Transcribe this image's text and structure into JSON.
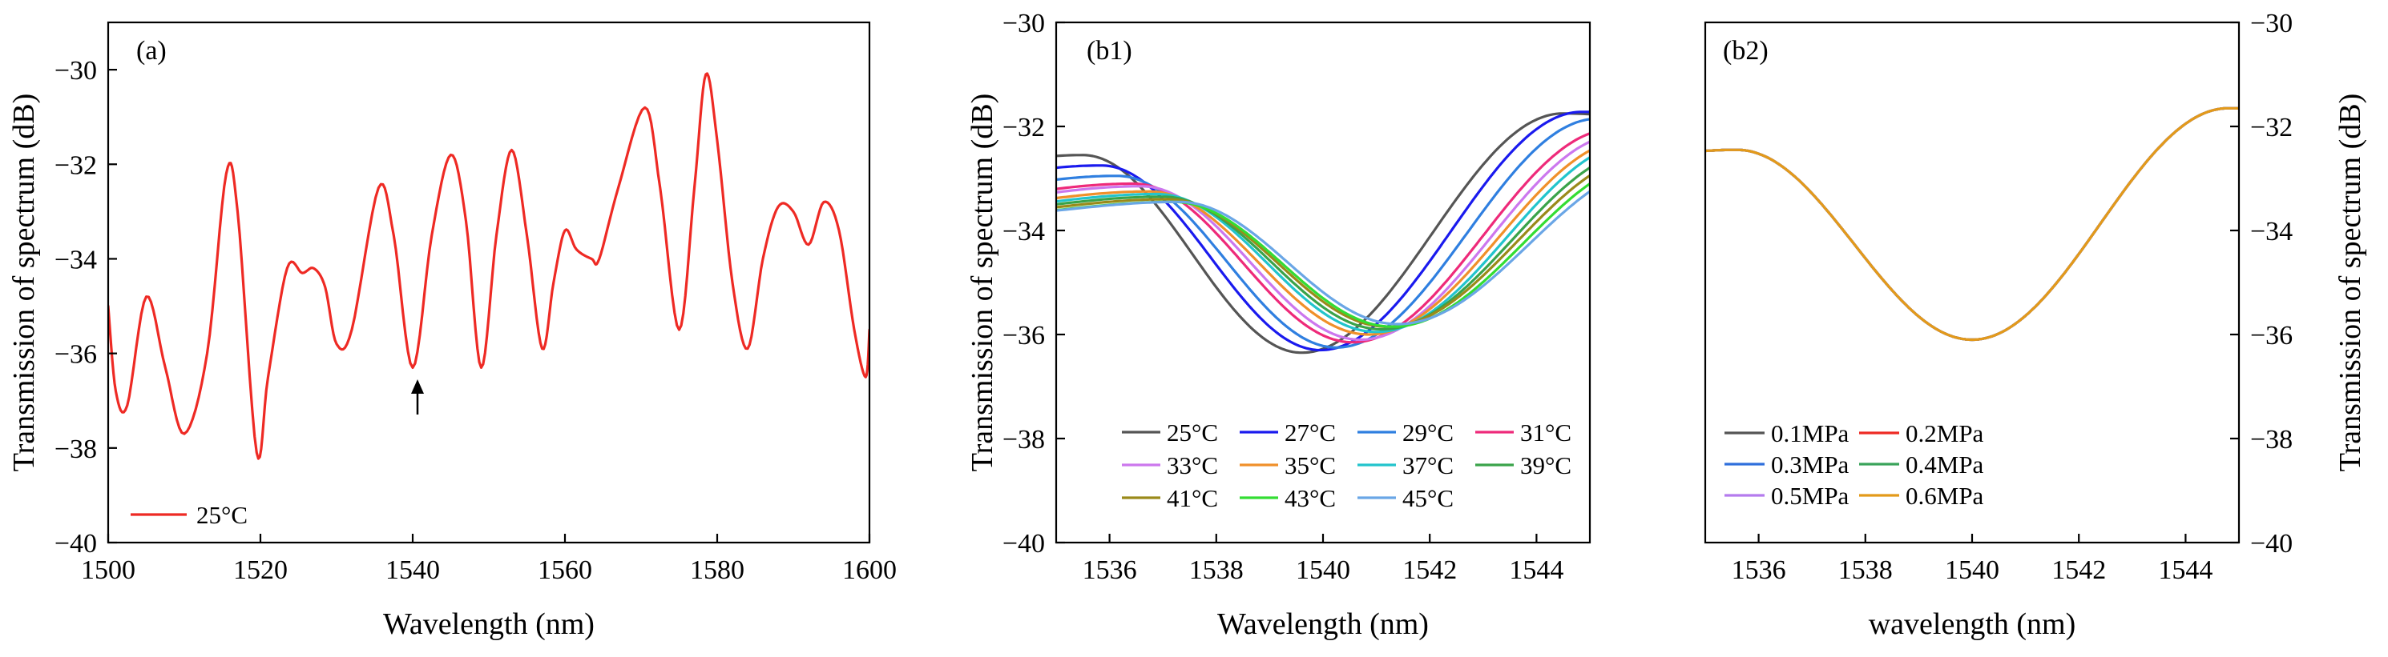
{
  "chart_data": [
    {
      "type": "line",
      "panel_label": "(a)",
      "xlabel": "Wavelength (nm)",
      "ylabel": "Transmission of spectrum (dB)",
      "xlim": [
        1500,
        1600
      ],
      "ylim": [
        -40,
        -29
      ],
      "xticks": [
        1500,
        1520,
        1540,
        1560,
        1580,
        1600
      ],
      "xtick_labels": [
        "1500",
        "1520",
        "1540",
        "1560",
        "1580",
        "1600"
      ],
      "yticks": [
        -40,
        -38,
        -36,
        -34,
        -32,
        -30
      ],
      "ytick_labels": [
        "−40",
        "−38",
        "−36",
        "−34",
        "−32",
        "−30"
      ],
      "annotation": {
        "type": "arrow",
        "x": 1540,
        "y_from": -37.6,
        "y_to": -36.8
      },
      "legend": {
        "position": "bottom-left"
      },
      "series": [
        {
          "name": "25°C",
          "color": "#ee2a24",
          "x": [
            1500,
            1501,
            1502.5,
            1505,
            1507.5,
            1510,
            1513,
            1515.5,
            1517,
            1519.5,
            1521,
            1523.5,
            1525.5,
            1527,
            1528.5,
            1530,
            1532,
            1535.5,
            1537.5,
            1540,
            1542.5,
            1545,
            1547,
            1549,
            1551,
            1553,
            1555,
            1557,
            1558.5,
            1560,
            1561.5,
            1563.5,
            1564.5,
            1567,
            1570.5,
            1572.5,
            1575,
            1577,
            1578.5,
            1580,
            1582,
            1584,
            1586,
            1588,
            1590,
            1592,
            1594,
            1596,
            1598,
            1599.5,
            1600
          ],
          "y": [
            -35.0,
            -36.8,
            -37.1,
            -34.8,
            -36.3,
            -37.7,
            -36.0,
            -32.2,
            -33.0,
            -38.1,
            -36.5,
            -34.2,
            -34.3,
            -34.2,
            -34.6,
            -35.8,
            -35.5,
            -32.5,
            -33.5,
            -36.3,
            -33.5,
            -31.8,
            -33.2,
            -36.3,
            -33.5,
            -31.7,
            -33.5,
            -35.9,
            -34.5,
            -33.4,
            -33.8,
            -34.0,
            -34.0,
            -32.5,
            -30.8,
            -32.5,
            -35.5,
            -32.5,
            -30.1,
            -31.5,
            -34.5,
            -35.9,
            -34.0,
            -32.9,
            -33.0,
            -33.7,
            -32.8,
            -33.4,
            -35.5,
            -36.5,
            -35.5
          ]
        }
      ]
    },
    {
      "type": "line",
      "panel_label": "(b1)",
      "xlabel": "Wavelength (nm)",
      "ylabel": "Transmission of spectrum (dB)",
      "xlim": [
        1535,
        1545
      ],
      "ylim": [
        -40,
        -30
      ],
      "xticks": [
        1536,
        1538,
        1540,
        1542,
        1544
      ],
      "xtick_labels": [
        "1536",
        "1538",
        "1540",
        "1542",
        "1544"
      ],
      "yticks": [
        -40,
        -38,
        -36,
        -34,
        -32,
        -30
      ],
      "ytick_labels": [
        "−40",
        "−38",
        "−36",
        "−34",
        "−32",
        "−30"
      ],
      "legend": {
        "position": "bottom",
        "columns": 4
      },
      "series": [
        {
          "name": "25°C",
          "color": "#555555",
          "dip_x": 1539.6,
          "dip_y": -36.35,
          "left_max": -32.55,
          "right_max": -31.75
        },
        {
          "name": "27°C",
          "color": "#1a1aee",
          "dip_x": 1539.95,
          "dip_y": -36.3,
          "left_max": -32.75,
          "right_max": -31.72
        },
        {
          "name": "29°C",
          "color": "#2f7fe0",
          "dip_x": 1540.25,
          "dip_y": -36.25,
          "left_max": -32.95,
          "right_max": -31.85
        },
        {
          "name": "31°C",
          "color": "#ee2a7a",
          "dip_x": 1540.55,
          "dip_y": -36.15,
          "left_max": -33.1,
          "right_max": -32.05
        },
        {
          "name": "33°C",
          "color": "#cc77ee",
          "dip_x": 1540.7,
          "dip_y": -36.1,
          "left_max": -33.15,
          "right_max": -32.15
        },
        {
          "name": "35°C",
          "color": "#f0902a",
          "dip_x": 1540.85,
          "dip_y": -36.0,
          "left_max": -33.25,
          "right_max": -32.25
        },
        {
          "name": "37°C",
          "color": "#22c4cc",
          "dip_x": 1541.0,
          "dip_y": -35.95,
          "left_max": -33.3,
          "right_max": -32.3
        },
        {
          "name": "39°C",
          "color": "#3aa34a",
          "dip_x": 1541.1,
          "dip_y": -35.9,
          "left_max": -33.35,
          "right_max": -32.45
        },
        {
          "name": "41°C",
          "color": "#9a8a1a",
          "dip_x": 1541.2,
          "dip_y": -35.85,
          "left_max": -33.4,
          "right_max": -32.55
        },
        {
          "name": "43°C",
          "color": "#33dd33",
          "dip_x": 1541.3,
          "dip_y": -35.85,
          "left_max": -33.45,
          "right_max": -32.65
        },
        {
          "name": "45°C",
          "color": "#6aa6e6",
          "dip_x": 1541.4,
          "dip_y": -35.8,
          "left_max": -33.45,
          "right_max": -32.75
        }
      ]
    },
    {
      "type": "line",
      "panel_label": "(b2)",
      "xlabel": "wavelength (nm)",
      "ylabel": "Transmission of spectrum (dB)",
      "xlim": [
        1535,
        1545
      ],
      "ylim": [
        -40,
        -30
      ],
      "xticks": [
        1536,
        1538,
        1540,
        1542,
        1544
      ],
      "xtick_labels": [
        "1536",
        "1538",
        "1540",
        "1542",
        "1544"
      ],
      "yticks": [
        -40,
        -38,
        -36,
        -34,
        -32,
        -30
      ],
      "ytick_labels": [
        "−40",
        "−38",
        "−36",
        "−34",
        "−32",
        "−30"
      ],
      "y_axis_side": "right",
      "legend": {
        "position": "bottom-left",
        "columns": 2
      },
      "curve": {
        "dip_x": 1540.0,
        "dip_y": -36.1,
        "left_max_x": 1535.6,
        "left_max": -32.45,
        "right_max_x": 1544.8,
        "right_max": -31.65
      },
      "series": [
        {
          "name": "0.1MPa",
          "color": "#555555"
        },
        {
          "name": "0.2MPa",
          "color": "#ee2a24"
        },
        {
          "name": "0.3MPa",
          "color": "#2f6fdc"
        },
        {
          "name": "0.4MPa",
          "color": "#3aa35a"
        },
        {
          "name": "0.5MPa",
          "color": "#b57bee"
        },
        {
          "name": "0.6MPa",
          "color": "#e39a1a"
        }
      ]
    }
  ]
}
